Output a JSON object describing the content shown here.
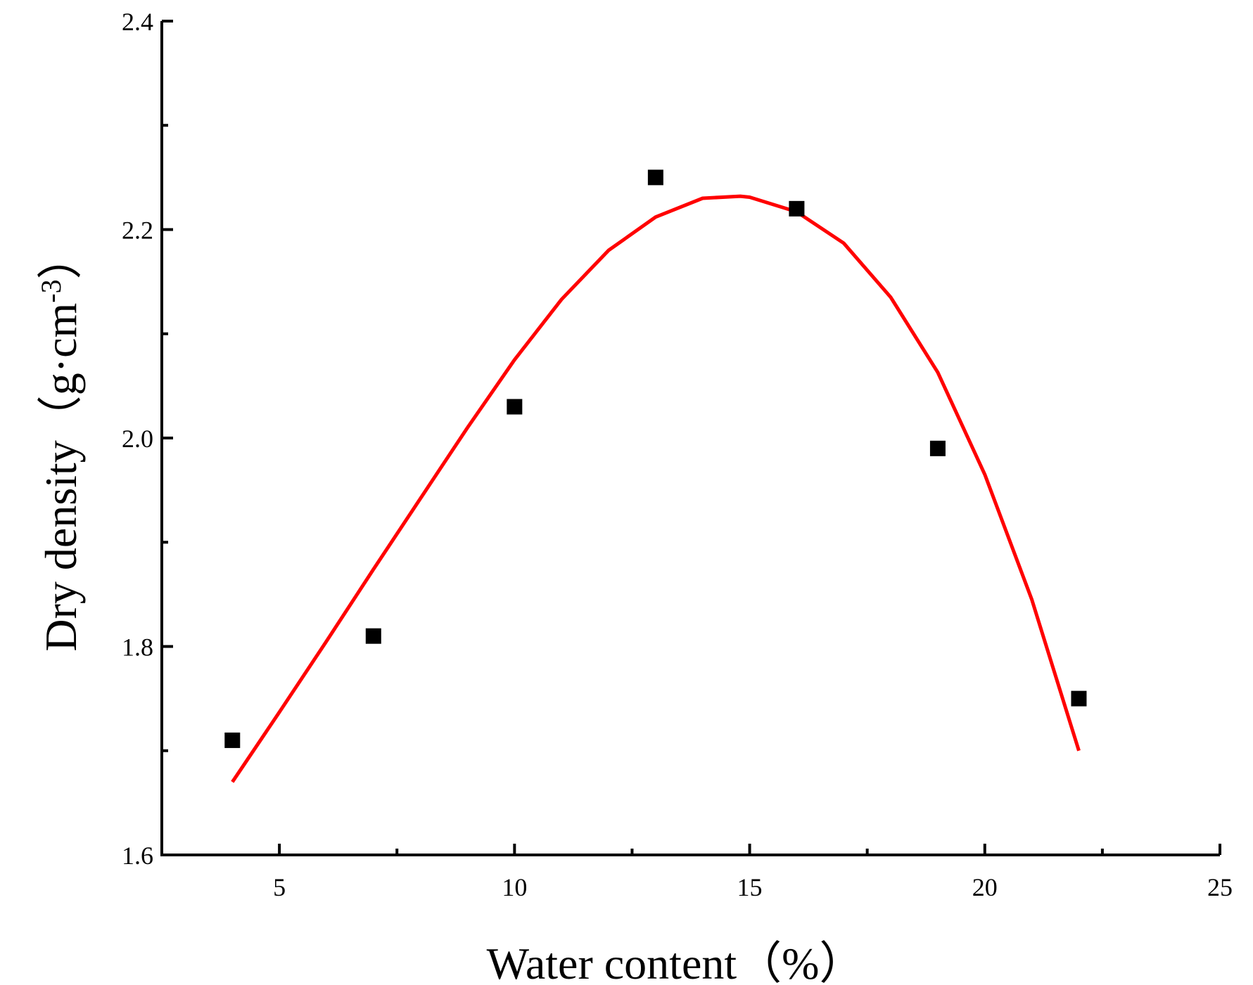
{
  "chart_data": {
    "type": "scatter",
    "xlabel": "Water content（%）",
    "ylabel_main": "Dry density（g·cm",
    "ylabel_sup": "-3",
    "ylabel_close": "）",
    "xlim": [
      2.5,
      25
    ],
    "ylim": [
      1.6,
      2.4
    ],
    "x_major_ticks": [
      5,
      10,
      15,
      20,
      25
    ],
    "x_tick_labels": [
      "5",
      "10",
      "15",
      "20",
      "25"
    ],
    "x_minor_ticks": [
      7.5,
      12.5,
      17.5,
      22.5
    ],
    "y_major_ticks": [
      1.6,
      1.8,
      2.0,
      2.2,
      2.4
    ],
    "y_tick_labels": [
      "1.6",
      "1.8",
      "2.0",
      "2.2",
      "2.4"
    ],
    "y_minor_ticks": [
      1.7,
      1.9,
      2.1,
      2.3
    ],
    "grid": false,
    "points": {
      "x": [
        4,
        7,
        10,
        13,
        16,
        19,
        22
      ],
      "y": [
        1.71,
        1.81,
        2.03,
        2.25,
        2.22,
        1.99,
        1.75
      ],
      "color": "#000000",
      "marker": "square"
    },
    "fit_curve": {
      "x": [
        4,
        5,
        6,
        7,
        8,
        9,
        10,
        11,
        12,
        13,
        14,
        14.8,
        15,
        16,
        17,
        18,
        19,
        20,
        21,
        22
      ],
      "y": [
        1.67,
        1.737,
        1.805,
        1.874,
        1.942,
        2.01,
        2.075,
        2.133,
        2.18,
        2.212,
        2.23,
        2.232,
        2.231,
        2.217,
        2.187,
        2.135,
        2.063,
        1.965,
        1.845,
        1.7
      ],
      "color": "#ff0000"
    }
  }
}
